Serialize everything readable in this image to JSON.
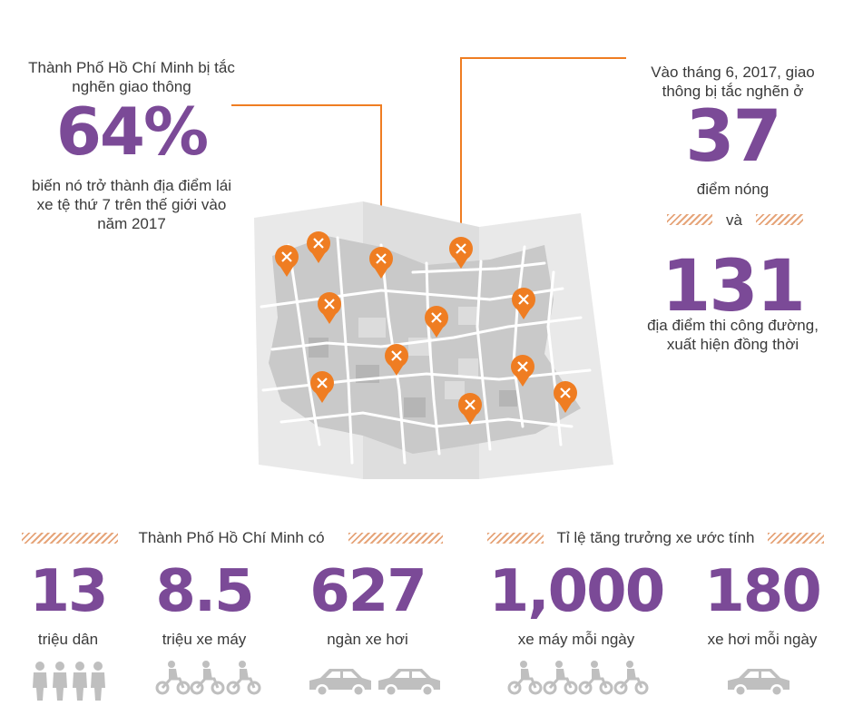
{
  "colors": {
    "accent": "#7b4a97",
    "orange": "#ef7d22",
    "map": "#e6e6e6",
    "mapDark": "#c7c7c7"
  },
  "left": {
    "lead": "Thành Phố Hồ Chí Minh bị tắc nghẽn giao thông",
    "value": "64%",
    "tail": "biến nó trở thành địa điểm lái xe tệ thứ 7 trên thế giới vào năm 2017"
  },
  "right": {
    "lead": "Vào tháng 6, 2017, giao thông bị tắc nghẽn ở",
    "value1": "37",
    "label1": "điểm nóng",
    "conj": "và",
    "value2": "131",
    "label2": "địa điểm thi công đường, xuất hiện đồng thời"
  },
  "bottom_left": {
    "title": "Thành Phố Hồ Chí Minh có",
    "stats": [
      {
        "value": "13",
        "label": "triệu dân",
        "icon": "person-icon",
        "count": 4
      },
      {
        "value": "8.5",
        "label": "triệu xe máy",
        "icon": "motorbike-icon",
        "count": 3
      },
      {
        "value": "627",
        "label": "ngàn xe hơi",
        "icon": "car-icon",
        "count": 2
      }
    ]
  },
  "bottom_right": {
    "title": "Tỉ lệ tăng trưởng xe ước tính",
    "stats": [
      {
        "value": "1,000",
        "label": "xe máy mỗi ngày",
        "icon": "motorbike-icon",
        "count": 4
      },
      {
        "value": "180",
        "label": "xe hơi mỗi ngày",
        "icon": "car-icon",
        "count": 1
      }
    ]
  }
}
